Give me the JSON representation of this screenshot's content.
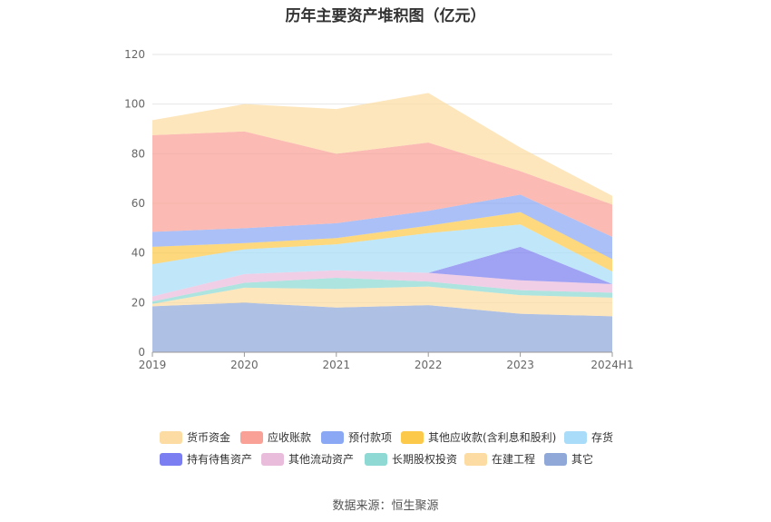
{
  "chart_data": {
    "type": "area",
    "title": "历年主要资产堆积图（亿元）",
    "source": "数据来源：恒生聚源",
    "categories": [
      "2019",
      "2020",
      "2021",
      "2022",
      "2023",
      "2024H1"
    ],
    "ylim": [
      0,
      120
    ],
    "yticks": [
      0,
      20,
      40,
      60,
      80,
      100,
      120
    ],
    "grid": true,
    "legend_position": "bottom",
    "series": [
      {
        "name": "其它",
        "color": "#8fa8d8",
        "values": [
          18.5,
          20,
          18,
          19,
          15.5,
          14.5
        ]
      },
      {
        "name": "在建工程",
        "color": "#fcdca2",
        "values": [
          1,
          6,
          7.5,
          7.5,
          7.5,
          7.5
        ]
      },
      {
        "name": "长期股权投资",
        "color": "#8ed9d4",
        "values": [
          1,
          2,
          4.5,
          2,
          2,
          2
        ]
      },
      {
        "name": "其他流动资产",
        "color": "#eabcdc",
        "values": [
          2,
          3.5,
          3,
          3.5,
          4,
          3.5
        ]
      },
      {
        "name": "持有待售资产",
        "color": "#7b7ef0",
        "values": [
          0,
          0,
          0,
          0,
          13.5,
          0
        ]
      },
      {
        "name": "存货",
        "color": "#a8dcf8",
        "values": [
          13,
          10,
          10.5,
          16,
          9,
          5
        ]
      },
      {
        "name": "其他应收款(含利息和股利)",
        "color": "#fcc94a",
        "values": [
          7,
          2.5,
          2.5,
          3,
          5,
          5
        ]
      },
      {
        "name": "预付款项",
        "color": "#8aa8f4",
        "values": [
          6,
          6,
          6,
          6,
          7,
          9
        ]
      },
      {
        "name": "应收账款",
        "color": "#f9a197",
        "values": [
          39,
          39,
          28,
          27.5,
          9.5,
          13
        ]
      },
      {
        "name": "货币资金",
        "color": "#fcdca2",
        "values": [
          6,
          11,
          18,
          20,
          9.5,
          3.5
        ]
      }
    ],
    "legend_order": [
      "货币资金",
      "应收账款",
      "预付款项",
      "其他应收款(含利息和股利)",
      "存货",
      "持有待售资产",
      "其他流动资产",
      "长期股权投资",
      "在建工程",
      "其它"
    ]
  }
}
